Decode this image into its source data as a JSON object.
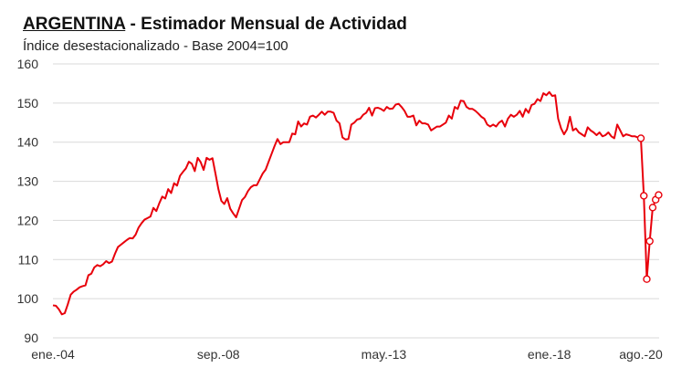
{
  "header": {
    "country": "ARGENTINA",
    "separator": " - ",
    "title_rest": "Estimador Mensual de Actividad",
    "subtitle": "Índice desestacionalizado - Base 2004=100"
  },
  "colors": {
    "series": "#e8000b",
    "grid": "#d9d9d9",
    "text": "#333333"
  },
  "chart_data": {
    "type": "line",
    "title": "ARGENTINA - Estimador Mensual de Actividad",
    "subtitle": "Índice desestacionalizado - Base 2004=100",
    "xlabel": "",
    "ylabel": "",
    "ylim": [
      90,
      160
    ],
    "yticks": [
      90,
      100,
      110,
      120,
      130,
      140,
      150,
      160
    ],
    "x_tick_labels": [
      {
        "label": "ene.-04",
        "date": "2004-01"
      },
      {
        "label": "sep.-08",
        "date": "2008-09"
      },
      {
        "label": "may.-13",
        "date": "2013-05"
      },
      {
        "label": "ene.-18",
        "date": "2018-01"
      },
      {
        "label": "ago.-20",
        "date": "2020-08"
      }
    ],
    "grid": "horizontal",
    "legend": "none",
    "x_start": "2004-01",
    "x_end": "2020-08",
    "series": [
      {
        "values": [
          98.3,
          98.2,
          97.3,
          96.0,
          96.3,
          98.5,
          101.0,
          101.8,
          102.3,
          102.9,
          103.2,
          103.4,
          106.0,
          106.4,
          108.0,
          108.6,
          108.3,
          108.8,
          109.6,
          109.1,
          109.5,
          111.5,
          113.2,
          113.8,
          114.4,
          115.0,
          115.5,
          115.4,
          116.4,
          118.2,
          119.3,
          120.2,
          120.6,
          121.0,
          123.2,
          122.4,
          124.4,
          126.1,
          125.6,
          128.0,
          127.0,
          129.5,
          128.9,
          131.4,
          132.4,
          133.3,
          135.0,
          134.5,
          132.6,
          136.0,
          134.9,
          132.9,
          136.0,
          135.5,
          135.9,
          132.0,
          128.0,
          125.0,
          124.2,
          125.7,
          123.0,
          121.8,
          120.8,
          123.0,
          125.2,
          126.0,
          127.5,
          128.5,
          129.0,
          129.0,
          130.5,
          132.0,
          133.0,
          135.0,
          137.0,
          139.0,
          140.8,
          139.5,
          140.0,
          140.0,
          140.0,
          142.2,
          142.0,
          145.3,
          144.0,
          144.8,
          144.5,
          146.5,
          146.8,
          146.3,
          147.0,
          147.8,
          147.0,
          147.8,
          147.8,
          147.5,
          145.5,
          144.8,
          141.2,
          140.7,
          140.8,
          144.5,
          145.0,
          145.8,
          146.0,
          147.0,
          147.5,
          148.8,
          146.8,
          148.7,
          148.8,
          148.5,
          148.0,
          149.0,
          148.5,
          148.6,
          149.6,
          149.8,
          149.0,
          148.0,
          146.5,
          146.5,
          146.8,
          144.3,
          145.5,
          144.8,
          144.8,
          144.5,
          143.0,
          143.5,
          144.0,
          144.0,
          144.5,
          145.0,
          146.8,
          146.0,
          149.0,
          148.5,
          150.6,
          150.5,
          149.0,
          148.5,
          148.5,
          148.0,
          147.3,
          146.5,
          146.0,
          144.5,
          144.0,
          144.5,
          144.0,
          145.0,
          145.5,
          144.0,
          146.0,
          147.0,
          146.5,
          147.0,
          148.0,
          146.5,
          148.5,
          147.5,
          149.5,
          149.8,
          151.0,
          150.5,
          152.5,
          152.0,
          152.8,
          151.8,
          152.0,
          146.0,
          143.5,
          142.0,
          143.3,
          146.5,
          143.0,
          143.5,
          142.5,
          142.0,
          141.5,
          143.8,
          143.0,
          142.5,
          141.8,
          142.5,
          141.5,
          141.8,
          142.5,
          141.5,
          141.0,
          144.5,
          143.0,
          141.5,
          142.0,
          141.8,
          141.5,
          141.5,
          141.2,
          141.0,
          126.3,
          105.0,
          114.7,
          123.3,
          125.3,
          126.5
        ]
      }
    ],
    "markers_last_n": 7
  }
}
